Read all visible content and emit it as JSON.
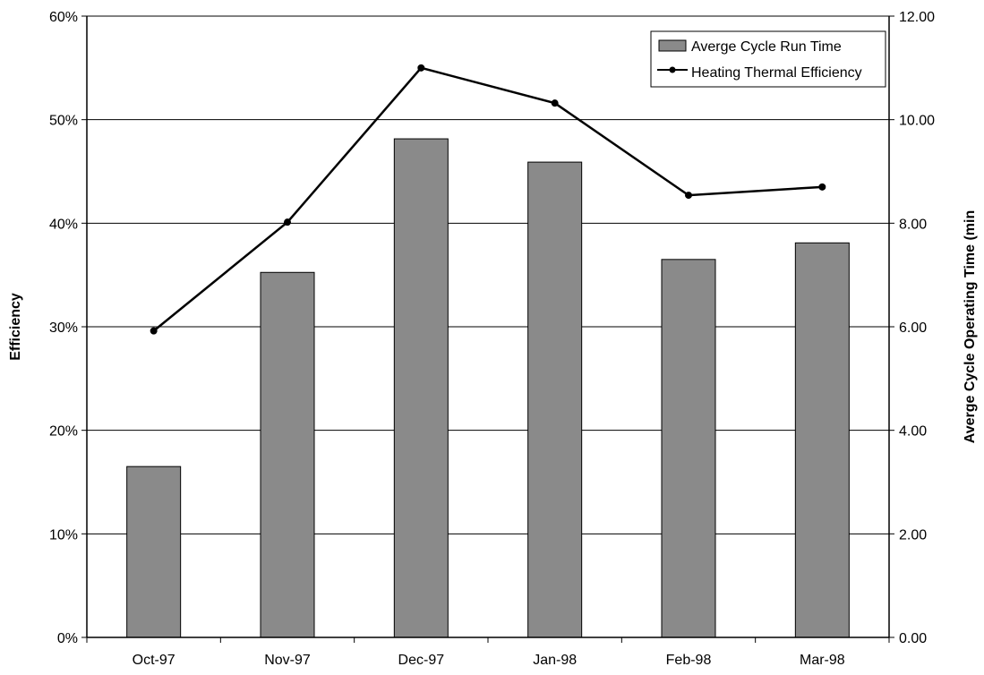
{
  "chart_data": {
    "type": "bar",
    "categories": [
      "Oct-97",
      "Nov-97",
      "Dec-97",
      "Jan-98",
      "Feb-98",
      "Mar-98"
    ],
    "series": [
      {
        "name": "Averge Cycle Run Time",
        "type": "bar",
        "axis": "right",
        "values": [
          3.3,
          7.05,
          9.63,
          9.18,
          7.3,
          7.62
        ],
        "color": "#8a8a8a"
      },
      {
        "name": "Heating Thermal Efficiency",
        "type": "line",
        "axis": "left",
        "values": [
          0.296,
          0.401,
          0.55,
          0.516,
          0.427,
          0.435
        ],
        "color": "#000000"
      }
    ],
    "ylabel": "Efficiency",
    "y2label": "Averge Cycle Operating Time (min",
    "ylim": [
      0,
      0.6
    ],
    "y2lim": [
      0,
      12
    ],
    "yticks": [
      "0%",
      "10%",
      "20%",
      "30%",
      "40%",
      "50%",
      "60%"
    ],
    "y2ticks": [
      "0.00",
      "2.00",
      "4.00",
      "6.00",
      "8.00",
      "10.00",
      "12.00"
    ],
    "grid": true,
    "legend": "top-right"
  }
}
